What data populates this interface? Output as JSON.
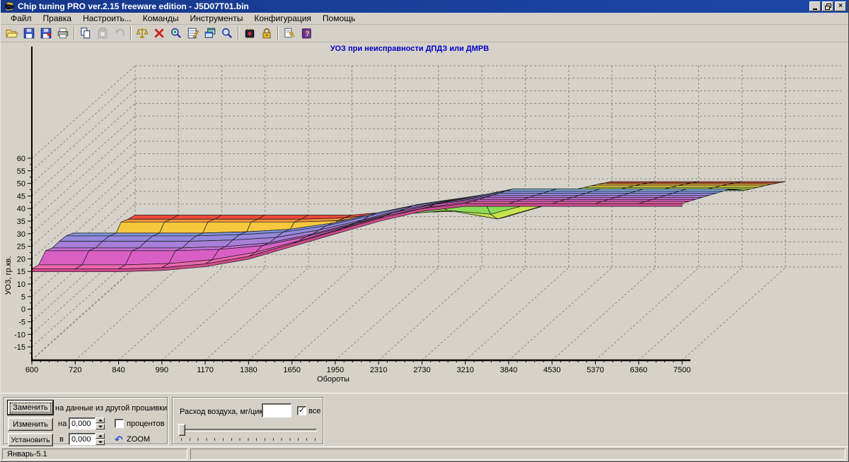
{
  "window": {
    "title": "Chip tuning PRO ver.2.15 freeware edition  -  J5D07T01.bin",
    "controls": {
      "minimize": "_",
      "restore": "❐",
      "close": "×"
    }
  },
  "menu": {
    "items": [
      {
        "label": "Файл"
      },
      {
        "label": "Правка"
      },
      {
        "label": "Настроить..."
      },
      {
        "label": "Команды"
      },
      {
        "label": "Инструменты"
      },
      {
        "label": "Конфигурация"
      },
      {
        "label": "Помощь"
      }
    ]
  },
  "toolbar": {
    "buttons": [
      "open-file",
      "save",
      "save-as",
      "print",
      "copy",
      "paste",
      "undo",
      "scales-compare",
      "delete-x",
      "zoom-in",
      "edit-table",
      "cascade-windows",
      "zoom-out",
      "chip",
      "lock",
      "eeprom-key",
      "help-book"
    ]
  },
  "chart_data": {
    "type": "3d-surface",
    "title": "УОЗ при неисправности ДПДЗ или ДМРВ",
    "title_color": "#0000c8",
    "xlabel": "Обороты",
    "ylabel": "УОЗ, гр.кв.",
    "x_categories": [
      600,
      720,
      840,
      990,
      1170,
      1380,
      1650,
      1950,
      2310,
      2730,
      3210,
      3840,
      4530,
      5370,
      6360,
      7500
    ],
    "y_ticks": [
      60,
      55,
      50,
      45,
      40,
      35,
      30,
      25,
      20,
      15,
      10,
      5,
      0,
      -5,
      -10,
      -15
    ],
    "ylim": [
      -15,
      60
    ],
    "grid": "dashed-3d-box",
    "series_order": "front-to-back",
    "series": [
      {
        "color": "#ee68ae",
        "values": [
          16,
          16,
          16,
          16.5,
          18,
          21,
          26,
          31,
          36,
          40,
          42,
          42,
          42,
          42,
          42,
          42
        ]
      },
      {
        "color": "#d95fc4",
        "values": [
          17.5,
          17.5,
          17.5,
          18,
          19.5,
          22.5,
          27,
          32,
          37,
          40.5,
          42.7,
          42.7,
          42.7,
          42.7,
          42.7,
          42.7
        ]
      },
      {
        "color": "#c46fd9",
        "values": [
          23,
          23,
          23,
          23,
          23.5,
          25,
          28.5,
          33,
          38,
          41.5,
          43.4,
          43.4,
          43.4,
          43.4,
          43.4,
          43.4
        ]
      },
      {
        "color": "#a77fd9",
        "values": [
          24,
          24,
          24,
          24,
          24.5,
          26,
          29.5,
          34,
          38.5,
          42,
          44.1,
          44.1,
          44.1,
          44.1,
          44.1,
          44.1
        ]
      },
      {
        "color": "#9488dd",
        "values": [
          26.5,
          26.5,
          26.5,
          26.5,
          27,
          28,
          31,
          35,
          39.5,
          42.5,
          44.8,
          44.8,
          44.8,
          44.8,
          44.8,
          44.8
        ]
      },
      {
        "color": "#7f92de",
        "values": [
          28.5,
          28.5,
          28.5,
          28.5,
          29,
          30,
          32.5,
          36.5,
          40.5,
          43,
          45.5,
          45.5,
          45.5,
          45.5,
          45.5,
          45.5
        ]
      },
      {
        "color": "#82b4e2",
        "values": [
          29.5,
          29.5,
          29.5,
          29.5,
          30,
          31,
          33.5,
          37.5,
          41,
          43.5,
          46.2,
          46.2,
          46.2,
          46.2,
          46.2,
          46.2
        ]
      },
      {
        "color": "#6fd2d6",
        "values": [
          25.5,
          25.5,
          25.5,
          26,
          27,
          29.5,
          33,
          37.5,
          41,
          43.5,
          46.9,
          46.9,
          46.9,
          46.9,
          46.9,
          46.9
        ]
      },
      {
        "color": "#62cb9a",
        "values": [
          23.5,
          23.5,
          23.5,
          24.5,
          26,
          29,
          33,
          37,
          40.5,
          43,
          46.5,
          46.5,
          46.5,
          46.5,
          46.5,
          46.5
        ]
      },
      {
        "color": "#8cdb57",
        "values": [
          22.5,
          22.5,
          23,
          24,
          26,
          29,
          33,
          37,
          40,
          42.5,
          46,
          46,
          46,
          46,
          46,
          46
        ]
      },
      {
        "color": "#c4e44e",
        "values": [
          24.5,
          24.5,
          24.5,
          25.5,
          27,
          30,
          33.5,
          36.5,
          38,
          36.5,
          41,
          46.5,
          46.5,
          46.5,
          46.5,
          46.5
        ]
      },
      {
        "color": "#f0e64c",
        "values": [
          26,
          26,
          26,
          26.5,
          28,
          30.5,
          34,
          37,
          37.5,
          34.5,
          39.5,
          47,
          47,
          47,
          47,
          47
        ]
      },
      {
        "color": "#f6c83e",
        "values": [
          27,
          27,
          27,
          27,
          28.5,
          31,
          34.5,
          37.5,
          38,
          35,
          40,
          47.5,
          47.5,
          47.5,
          47.5,
          47.5
        ]
      },
      {
        "color": "#f5913c",
        "values": [
          33,
          33,
          33,
          33,
          33,
          33.5,
          35.5,
          38.5,
          38.5,
          36,
          40.5,
          48,
          48,
          48,
          48,
          48
        ]
      },
      {
        "color": "#ee4a3a",
        "values": [
          34,
          34,
          34,
          34,
          34,
          34.5,
          36.5,
          39,
          39,
          37,
          41,
          48.4,
          48.4,
          48.4,
          48.4,
          48.4
        ]
      },
      {
        "color": "#ee4a3a",
        "values": [
          35.5,
          35.5,
          35.5,
          35.5,
          35.5,
          35.5,
          37,
          39.5,
          39.5,
          38,
          41.5,
          48.8,
          48.8,
          48.8,
          48.8,
          48.8
        ]
      }
    ]
  },
  "edit_panel": {
    "replace_button": "Заменить",
    "replace_caption": "на данные из другой прошивки",
    "change_button": "Изменить",
    "change_prefix": "на",
    "change_value": "0,000",
    "percent_label": "процентов",
    "percent_checked": false,
    "set_button": "Установить",
    "set_prefix": "в",
    "set_value": "0,000",
    "zoom_label": "ZOOM"
  },
  "airflow_panel": {
    "label": "Расход воздуха, мг/цикл",
    "value": "",
    "all_label": "все",
    "all_checked": true,
    "slider_position": 0
  },
  "status_bar": {
    "text": "Январь-5.1"
  },
  "colors": {
    "titlebar": "#1b3f96",
    "face": "#d4d0c8",
    "chart_title": "#0000c8",
    "grid_dash": "#8f897e"
  }
}
